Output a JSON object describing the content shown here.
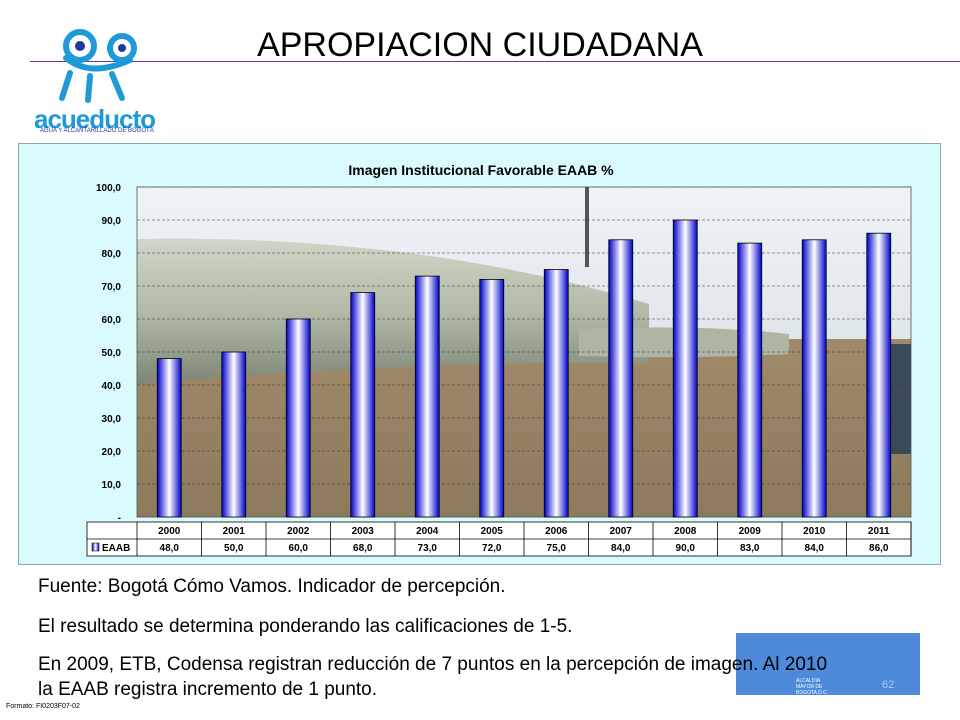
{
  "slide": {
    "title": "APROPIACION CIUDADANA",
    "logo_text": "acueducto",
    "logo_subtitle": "AGUA Y ALCANTARILLADO DE BOGOTÁ",
    "line1": "Fuente: Bogotá Cómo Vamos. Indicador de percepción.",
    "line2": "El resultado se determina ponderando las calificaciones de 1-5.",
    "line3": "En 2009, ETB, Codensa registran reducción de 7 puntos en la percepción de imagen. Al 2010 la EAAB registra incremento de 1 punto.",
    "formato": "Formato: FI0203F07-02",
    "footer_logo_label": "ALCALDIA MAYOR DE BOGOTA D.C.",
    "page_number": "62"
  },
  "chart_data": {
    "type": "bar",
    "title": "Imagen Institucional Favorable  EAAB %",
    "categories": [
      "2000",
      "2001",
      "2002",
      "2003",
      "2004",
      "2005",
      "2006",
      "2007",
      "2008",
      "2009",
      "2010",
      "2011"
    ],
    "series": [
      {
        "name": "EAAB",
        "values": [
          48.0,
          50.0,
          60.0,
          68.0,
          73.0,
          72.0,
          75.0,
          84.0,
          90.0,
          83.0,
          84.0,
          86.0
        ]
      }
    ],
    "value_labels": [
      "48,0",
      "50,0",
      "60,0",
      "68,0",
      "73,0",
      "72,0",
      "75,0",
      "84,0",
      "90,0",
      "83,0",
      "84,0",
      "86,0"
    ],
    "yticks": [
      "-",
      "10,0",
      "20,0",
      "30,0",
      "40,0",
      "50,0",
      "60,0",
      "70,0",
      "80,0",
      "90,0",
      "100,0"
    ],
    "ylim": [
      0,
      100
    ],
    "legend": "data-table",
    "colors": {
      "bar_dark": "#0000cc",
      "bar_light": "#ffffff",
      "background": "#d9fbfd"
    }
  }
}
